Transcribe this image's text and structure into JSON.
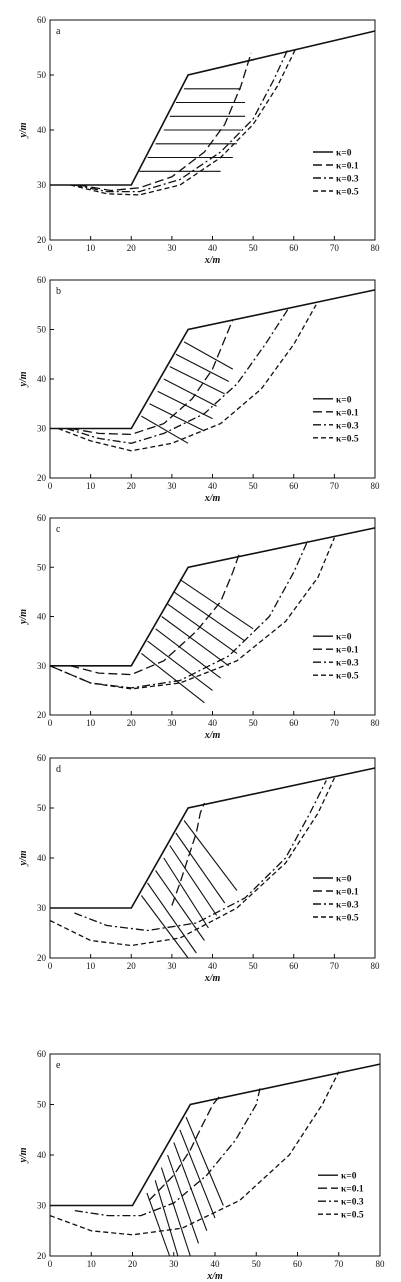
{
  "chart_data": [
    {
      "type": "line",
      "panel_label": "a",
      "xlabel": "x/m",
      "ylabel": "y/m",
      "xlim": [
        0,
        80
      ],
      "ylim": [
        20,
        60
      ],
      "xticks": [
        "0",
        "10",
        "20",
        "30",
        "40",
        "50",
        "60",
        "70",
        "80"
      ],
      "yticks": [
        "20",
        "30",
        "40",
        "50",
        "60"
      ],
      "legend_position": "right",
      "slope": {
        "x": [
          0,
          20,
          34,
          80
        ],
        "y": [
          30,
          30,
          50,
          58
        ]
      },
      "slices": [
        {
          "x": [
            33,
            47
          ],
          "y": [
            47.5,
            47.5
          ]
        },
        {
          "x": [
            31,
            48
          ],
          "y": [
            45,
            45
          ]
        },
        {
          "x": [
            29.5,
            48
          ],
          "y": [
            42.5,
            42.5
          ]
        },
        {
          "x": [
            28,
            47
          ],
          "y": [
            40,
            40
          ]
        },
        {
          "x": [
            26,
            46
          ],
          "y": [
            37.5,
            37.5
          ]
        },
        {
          "x": [
            24,
            45
          ],
          "y": [
            35,
            35
          ]
        },
        {
          "x": [
            22,
            42
          ],
          "y": [
            32.5,
            32.5
          ]
        }
      ],
      "series": [
        {
          "name": "κ=0",
          "dash": "solid",
          "x": [
            20,
            20,
            20
          ],
          "y": [
            30,
            30,
            30
          ]
        },
        {
          "name": "κ=0.1",
          "dash": "long-dash",
          "x": [
            7,
            15,
            22,
            30,
            38,
            43,
            47,
            49.5
          ],
          "y": [
            30,
            29,
            29.5,
            31.5,
            36,
            41,
            48,
            54
          ]
        },
        {
          "name": "κ=0.3",
          "dash": "dash-dot",
          "x": [
            6,
            14,
            22,
            32,
            42,
            50,
            55,
            58.5
          ],
          "y": [
            30,
            28.8,
            28.8,
            31,
            36,
            42,
            49,
            54.6
          ]
        },
        {
          "name": "κ=0.5",
          "dash": "dash",
          "x": [
            5,
            14,
            22,
            32,
            42,
            50,
            56,
            60.5
          ],
          "y": [
            30,
            28.4,
            28.2,
            30,
            35,
            41,
            48,
            54.8
          ]
        }
      ]
    },
    {
      "type": "line",
      "panel_label": "b",
      "xlabel": "x/m",
      "ylabel": "y/m",
      "xlim": [
        0,
        80
      ],
      "ylim": [
        20,
        60
      ],
      "xticks": [
        "0",
        "10",
        "20",
        "30",
        "40",
        "50",
        "60",
        "70",
        "80"
      ],
      "yticks": [
        "20",
        "30",
        "40",
        "50",
        "60"
      ],
      "legend_position": "right",
      "slope": {
        "x": [
          0,
          20,
          34,
          80
        ],
        "y": [
          30,
          30,
          50,
          58
        ]
      },
      "slices": [
        {
          "x": [
            33,
            45
          ],
          "y": [
            47.5,
            42
          ]
        },
        {
          "x": [
            31,
            44
          ],
          "y": [
            45,
            39.5
          ]
        },
        {
          "x": [
            29.5,
            43
          ],
          "y": [
            42.5,
            37
          ]
        },
        {
          "x": [
            28,
            41
          ],
          "y": [
            40,
            34.5
          ]
        },
        {
          "x": [
            26.5,
            40
          ],
          "y": [
            37.5,
            32
          ]
        },
        {
          "x": [
            24.5,
            38
          ],
          "y": [
            35,
            29.5
          ]
        },
        {
          "x": [
            22.5,
            34
          ],
          "y": [
            32.5,
            27
          ]
        }
      ],
      "series": [
        {
          "name": "κ=0",
          "dash": "solid",
          "x": [
            20,
            20,
            20
          ],
          "y": [
            30,
            30,
            30
          ]
        },
        {
          "name": "κ=0.1",
          "dash": "long-dash",
          "x": [
            5,
            12,
            20,
            28,
            35,
            40,
            43,
            45
          ],
          "y": [
            30,
            29,
            28.8,
            31,
            36,
            42,
            48,
            52
          ]
        },
        {
          "name": "κ=0.3",
          "dash": "dash-dot",
          "x": [
            4,
            12,
            20,
            28,
            38,
            46,
            53,
            58.5
          ],
          "y": [
            30,
            28,
            27,
            29,
            33,
            39,
            47,
            54
          ]
        },
        {
          "name": "κ=0.5",
          "dash": "dash",
          "x": [
            2,
            10,
            20,
            30,
            42,
            52,
            60,
            65.5
          ],
          "y": [
            30,
            27.5,
            25.5,
            27,
            31,
            38,
            47,
            55
          ]
        }
      ]
    },
    {
      "type": "line",
      "panel_label": "c",
      "xlabel": "x/m",
      "ylabel": "y/m",
      "xlim": [
        0,
        80
      ],
      "ylim": [
        20,
        60
      ],
      "xticks": [
        "0",
        "10",
        "20",
        "30",
        "40",
        "50",
        "60",
        "70",
        "80"
      ],
      "yticks": [
        "20",
        "30",
        "40",
        "50",
        "60"
      ],
      "legend_position": "right",
      "slope": {
        "x": [
          0,
          20,
          34,
          80
        ],
        "y": [
          30,
          30,
          50,
          58
        ]
      },
      "slices": [
        {
          "x": [
            32,
            50
          ],
          "y": [
            47.5,
            37.5
          ]
        },
        {
          "x": [
            30.5,
            48
          ],
          "y": [
            45,
            35
          ]
        },
        {
          "x": [
            29,
            46
          ],
          "y": [
            42.5,
            32.5
          ]
        },
        {
          "x": [
            27.5,
            44
          ],
          "y": [
            40,
            30
          ]
        },
        {
          "x": [
            26,
            42
          ],
          "y": [
            37.5,
            27.5
          ]
        },
        {
          "x": [
            24,
            40
          ],
          "y": [
            35,
            25
          ]
        },
        {
          "x": [
            22.5,
            38
          ],
          "y": [
            32.5,
            22.5
          ]
        }
      ],
      "series": [
        {
          "name": "κ=0",
          "dash": "solid",
          "x": [
            20,
            20,
            20
          ],
          "y": [
            30,
            30,
            30
          ]
        },
        {
          "name": "κ=0.1",
          "dash": "long-dash",
          "x": [
            5,
            12,
            20,
            28,
            36,
            42,
            45,
            46.5
          ],
          "y": [
            30,
            28.5,
            28.2,
            31,
            37,
            43,
            49,
            52.5
          ]
        },
        {
          "name": "κ=0.3",
          "dash": "dash-dot",
          "x": [
            0,
            10,
            20,
            32,
            44,
            54,
            60,
            63.5
          ],
          "y": [
            30,
            26.5,
            25.5,
            27,
            32,
            40,
            49,
            55.5
          ]
        },
        {
          "name": "κ=0.5",
          "dash": "dash",
          "x": [
            0,
            10,
            20,
            32,
            46,
            58,
            66,
            70
          ],
          "y": [
            30,
            26.5,
            25.3,
            26.5,
            31,
            39,
            48,
            56
          ]
        }
      ]
    },
    {
      "type": "line",
      "panel_label": "d",
      "xlabel": "x/m",
      "ylabel": "y/m",
      "xlim": [
        0,
        80
      ],
      "ylim": [
        20,
        60
      ],
      "xticks": [
        "0",
        "10",
        "20",
        "30",
        "40",
        "50",
        "60",
        "70",
        "80"
      ],
      "yticks": [
        "20",
        "30",
        "40",
        "50",
        "60"
      ],
      "legend_position": "right",
      "slope": {
        "x": [
          0,
          20,
          34,
          80
        ],
        "y": [
          30,
          30,
          50,
          58
        ]
      },
      "slices": [
        {
          "x": [
            33,
            46
          ],
          "y": [
            47.5,
            33.5
          ]
        },
        {
          "x": [
            31,
            43
          ],
          "y": [
            45,
            31
          ]
        },
        {
          "x": [
            29.5,
            41
          ],
          "y": [
            42.5,
            28.5
          ]
        },
        {
          "x": [
            28,
            39
          ],
          "y": [
            40,
            26
          ]
        },
        {
          "x": [
            26,
            38
          ],
          "y": [
            37.5,
            23.5
          ]
        },
        {
          "x": [
            24,
            36
          ],
          "y": [
            35,
            21
          ]
        },
        {
          "x": [
            22.5,
            34
          ],
          "y": [
            32.5,
            20
          ]
        }
      ],
      "series": [
        {
          "name": "κ=0",
          "dash": "solid",
          "x": [
            20,
            20,
            20
          ],
          "y": [
            30,
            30,
            30
          ]
        },
        {
          "name": "κ=0.1",
          "dash": "long-dash",
          "x": [
            30,
            32,
            34,
            36,
            37,
            38
          ],
          "y": [
            30.5,
            35,
            40,
            45,
            49,
            51
          ]
        },
        {
          "name": "κ=0.3",
          "dash": "dash-dot",
          "x": [
            6,
            14,
            24,
            36,
            48,
            58,
            64,
            68
          ],
          "y": [
            29,
            26.5,
            25.5,
            27,
            32,
            40,
            49,
            55.5
          ]
        },
        {
          "name": "κ=0.5",
          "dash": "dash",
          "x": [
            0,
            10,
            20,
            32,
            46,
            58,
            66,
            70
          ],
          "y": [
            27.5,
            23.5,
            22.5,
            24,
            30,
            39,
            49,
            56
          ]
        }
      ]
    },
    {
      "type": "line",
      "panel_label": "e",
      "xlabel": "x/m",
      "ylabel": "y/m",
      "xlim": [
        0,
        80
      ],
      "ylim": [
        20,
        60
      ],
      "xticks": [
        "0",
        "10",
        "20",
        "30",
        "40",
        "50",
        "60",
        "70",
        "80"
      ],
      "yticks": [
        "20",
        "30",
        "40",
        "50",
        "60"
      ],
      "legend_position": "right",
      "slope": {
        "x": [
          0,
          20,
          34,
          80
        ],
        "y": [
          30,
          30,
          50,
          58
        ]
      },
      "slices": [
        {
          "x": [
            33,
            42
          ],
          "y": [
            47.5,
            30
          ]
        },
        {
          "x": [
            31.5,
            40
          ],
          "y": [
            45,
            27.5
          ]
        },
        {
          "x": [
            30,
            38
          ],
          "y": [
            42.5,
            25
          ]
        },
        {
          "x": [
            28.5,
            36
          ],
          "y": [
            40,
            22.5
          ]
        },
        {
          "x": [
            27,
            34
          ],
          "y": [
            37.5,
            20
          ]
        },
        {
          "x": [
            25.5,
            31
          ],
          "y": [
            35,
            20
          ]
        },
        {
          "x": [
            23.5,
            29
          ],
          "y": [
            32.5,
            20
          ]
        }
      ],
      "series": [
        {
          "name": "κ=0",
          "dash": "solid",
          "x": [
            20,
            20,
            20
          ],
          "y": [
            30,
            30,
            30
          ]
        },
        {
          "name": "κ=0.1",
          "dash": "long-dash",
          "x": [
            24,
            30,
            34,
            37,
            39.5,
            41
          ],
          "y": [
            31,
            36,
            41,
            46,
            50,
            51.5
          ]
        },
        {
          "name": "κ=0.3",
          "dash": "dash-dot",
          "x": [
            6,
            14,
            22,
            30,
            38,
            45,
            50,
            51
          ],
          "y": [
            29,
            28,
            28,
            30.5,
            36,
            43,
            50,
            53.5
          ]
        },
        {
          "name": "κ=0.5",
          "dash": "dash",
          "x": [
            0,
            10,
            20,
            32,
            46,
            58,
            66,
            70
          ],
          "y": [
            28,
            25,
            24.2,
            25.5,
            31,
            40,
            50,
            56.5
          ]
        }
      ]
    }
  ]
}
